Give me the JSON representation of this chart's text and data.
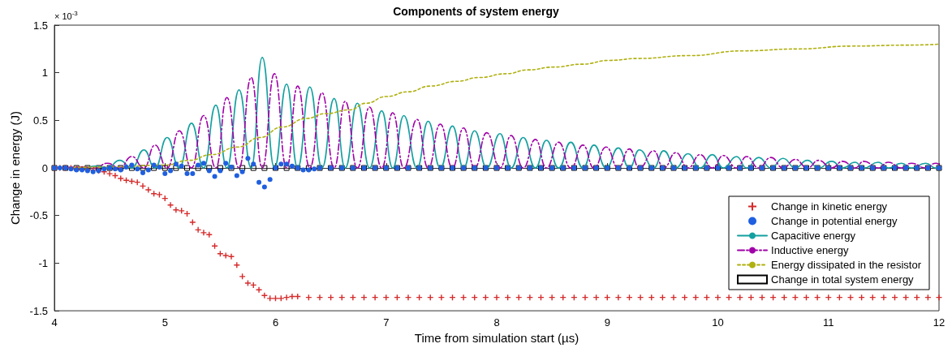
{
  "chart_data": {
    "type": "line",
    "title": "Components of system energy",
    "xlabel": "Time from simulation start (µs)",
    "ylabel": "Change in energy (J)",
    "annotations": [
      "× 10$^{-3}$"
    ],
    "xlim": [
      4,
      12
    ],
    "xticks": [
      4,
      5,
      6,
      7,
      8,
      9,
      10,
      11,
      12
    ],
    "ylim": [
      -1.5,
      1.5
    ],
    "yticks": [
      -1.5,
      -1,
      -0.5,
      0,
      0.5,
      1,
      1.5
    ],
    "legend": "bottom right",
    "series": [
      {
        "name": "Change in kinetic energy",
        "type": "scatter",
        "marker": "cross",
        "color": "#d62a2a",
        "x": [
          4,
          4.05,
          4.1,
          4.15,
          4.2,
          4.25,
          4.3,
          4.35,
          4.4,
          4.45,
          4.5,
          4.55,
          4.6,
          4.65,
          4.7,
          4.75,
          4.8,
          4.85,
          4.9,
          4.95,
          5,
          5.05,
          5.1,
          5.15,
          5.2,
          5.25,
          5.3,
          5.35,
          5.4,
          5.45,
          5.5,
          5.55,
          5.6,
          5.65,
          5.7,
          5.75,
          5.8,
          5.85,
          5.9,
          5.95,
          6,
          6.05,
          6.1,
          6.15,
          6.2,
          6.3,
          6.4,
          6.5,
          6.6,
          6.7,
          6.8,
          6.9,
          7,
          7.1,
          7.2,
          7.3,
          7.4,
          7.5,
          7.6,
          7.7,
          7.8,
          7.9,
          8,
          8.1,
          8.2,
          8.3,
          8.4,
          8.5,
          8.6,
          8.7,
          8.8,
          8.9,
          9,
          9.1,
          9.2,
          9.3,
          9.4,
          9.5,
          9.6,
          9.7,
          9.8,
          9.9,
          10,
          10.1,
          10.2,
          10.3,
          10.4,
          10.5,
          10.6,
          10.7,
          10.8,
          10.9,
          11,
          11.1,
          11.2,
          11.3,
          11.4,
          11.5,
          11.6,
          11.7,
          11.8,
          11.9,
          12
        ],
        "values": [
          0,
          0,
          0,
          0,
          -0.01,
          -0.01,
          -0.02,
          -0.02,
          -0.03,
          -0.04,
          -0.06,
          -0.08,
          -0.11,
          -0.13,
          -0.14,
          -0.15,
          -0.19,
          -0.23,
          -0.27,
          -0.28,
          -0.32,
          -0.39,
          -0.44,
          -0.45,
          -0.48,
          -0.57,
          -0.65,
          -0.68,
          -0.7,
          -0.82,
          -0.9,
          -0.92,
          -0.93,
          -1.02,
          -1.14,
          -1.21,
          -1.23,
          -1.28,
          -1.34,
          -1.37,
          -1.37,
          -1.37,
          -1.36,
          -1.35,
          -1.35,
          -1.36,
          -1.36,
          -1.36,
          -1.36,
          -1.36,
          -1.36,
          -1.36,
          -1.36,
          -1.36,
          -1.36,
          -1.36,
          -1.36,
          -1.36,
          -1.36,
          -1.36,
          -1.36,
          -1.36,
          -1.36,
          -1.36,
          -1.36,
          -1.36,
          -1.36,
          -1.36,
          -1.36,
          -1.36,
          -1.36,
          -1.36,
          -1.36,
          -1.36,
          -1.36,
          -1.36,
          -1.36,
          -1.36,
          -1.36,
          -1.36,
          -1.36,
          -1.36,
          -1.36,
          -1.36,
          -1.36,
          -1.36,
          -1.36,
          -1.36,
          -1.36,
          -1.36,
          -1.36,
          -1.36,
          -1.36,
          -1.36,
          -1.36,
          -1.36,
          -1.36,
          -1.36,
          -1.36,
          -1.36,
          -1.36,
          -1.36,
          -1.36
        ]
      },
      {
        "name": "Change in potential energy",
        "type": "scatter",
        "marker": "circle",
        "color": "#1f5fe0",
        "x": [
          4,
          4.05,
          4.1,
          4.15,
          4.2,
          4.25,
          4.3,
          4.35,
          4.4,
          4.45,
          4.5,
          4.55,
          4.6,
          4.65,
          4.7,
          4.75,
          4.8,
          4.85,
          4.9,
          4.95,
          5,
          5.05,
          5.1,
          5.15,
          5.2,
          5.25,
          5.3,
          5.35,
          5.4,
          5.45,
          5.5,
          5.55,
          5.6,
          5.65,
          5.7,
          5.75,
          5.8,
          5.85,
          5.9,
          5.95,
          6,
          6.05,
          6.1,
          6.15,
          6.2,
          6.25,
          6.3,
          6.35,
          6.4,
          6.5,
          6.6,
          6.7,
          6.8,
          6.9,
          7,
          7.1,
          7.2,
          7.3,
          7.4,
          7.5,
          7.6,
          7.7,
          7.8,
          7.9,
          8,
          8.1,
          8.2,
          8.3,
          8.4,
          8.5,
          8.6,
          8.7,
          8.8,
          8.9,
          9,
          9.1,
          9.2,
          9.3,
          9.4,
          9.5,
          9.6,
          9.7,
          9.8,
          9.9,
          10,
          10.1,
          10.2,
          10.3,
          10.4,
          10.5,
          10.6,
          10.7,
          10.8,
          10.9,
          11,
          11.1,
          11.2,
          11.3,
          11.4,
          11.5,
          11.6,
          11.7,
          11.8,
          11.9,
          12
        ],
        "values": [
          0,
          0,
          0,
          -0.01,
          -0.02,
          -0.02,
          -0.03,
          -0.04,
          -0.03,
          -0.01,
          0,
          -0.01,
          -0.02,
          0.01,
          0.03,
          -0.01,
          -0.05,
          -0.02,
          0.03,
          0.01,
          -0.06,
          -0.03,
          0.04,
          0.02,
          -0.06,
          -0.06,
          0.03,
          0.05,
          -0.03,
          -0.09,
          -0.03,
          0.05,
          0.01,
          -0.08,
          -0.04,
          0.1,
          0.04,
          -0.15,
          -0.2,
          -0.12,
          0,
          0.04,
          0.04,
          0.02,
          0,
          -0.02,
          -0.02,
          -0.01,
          0,
          0,
          0,
          0,
          0,
          0,
          0,
          0,
          0,
          0,
          0,
          0,
          0,
          0,
          0,
          0,
          0,
          0,
          0,
          0,
          0,
          0,
          0,
          0,
          0,
          0,
          0,
          0,
          0,
          0,
          0,
          0,
          0,
          0,
          0,
          0,
          0,
          0,
          0,
          0,
          0,
          0,
          0,
          0,
          0,
          0,
          0,
          0,
          0,
          0,
          0,
          0,
          0,
          0,
          0,
          0,
          0
        ]
      },
      {
        "name": "Capacitive energy",
        "marker": "none",
        "line_style": "solid",
        "color": "#14a0a0",
        "x": [
          4,
          4.27,
          4.37,
          4.48,
          4.59,
          4.7,
          4.81,
          4.91,
          5.02,
          5.13,
          5.24,
          5.35,
          5.46,
          5.56,
          5.67,
          5.78,
          5.88,
          5.99,
          6.1,
          6.2,
          6.31,
          6.42,
          6.53,
          6.63,
          6.74,
          6.85,
          6.96,
          7.06,
          7.16,
          7.28,
          7.38,
          7.49,
          7.6,
          7.7,
          7.8,
          7.91,
          8.03,
          8.13,
          8.24,
          8.35,
          8.45,
          8.56,
          8.67,
          8.78,
          8.88,
          8.99,
          9.1,
          9.2,
          9.29,
          9.42,
          9.51,
          9.62,
          9.73,
          9.84,
          9.95,
          10.05,
          10.17,
          10.26,
          10.37,
          10.48,
          10.59,
          10.7,
          10.81,
          10.91,
          11.03,
          11.13,
          11.24,
          11.32,
          11.45,
          11.54,
          11.66,
          11.75,
          11.88,
          11.97,
          12
        ],
        "values": [
          0,
          0,
          0.02,
          0,
          0.08,
          0,
          0.19,
          0,
          0.32,
          0,
          0.47,
          0,
          0.66,
          0,
          0.82,
          0,
          1.16,
          0,
          0.88,
          0,
          0.85,
          0,
          0.73,
          0,
          0.68,
          0,
          0.6,
          0,
          0.55,
          0,
          0.49,
          0,
          0.44,
          0,
          0.39,
          0,
          0.36,
          0,
          0.32,
          0,
          0.29,
          0,
          0.27,
          0,
          0.24,
          0,
          0.21,
          0,
          0.19,
          0,
          0.18,
          0,
          0.15,
          0,
          0.14,
          0,
          0.12,
          0,
          0.11,
          0,
          0.1,
          0,
          0.08,
          0,
          0.07,
          0,
          0.06,
          0,
          0.06,
          0,
          0.05,
          0,
          0.05,
          0,
          0
        ]
      },
      {
        "name": "Inductive energy",
        "marker": "none",
        "line_style": "dashdot",
        "color": "#a000a8",
        "x": [
          4,
          4.27,
          4.37,
          4.48,
          4.59,
          4.7,
          4.81,
          4.91,
          5.02,
          5.13,
          5.24,
          5.35,
          5.46,
          5.56,
          5.67,
          5.78,
          5.88,
          5.99,
          6.1,
          6.2,
          6.31,
          6.42,
          6.53,
          6.63,
          6.74,
          6.85,
          6.96,
          7.06,
          7.16,
          7.28,
          7.38,
          7.49,
          7.6,
          7.7,
          7.8,
          7.91,
          8.03,
          8.13,
          8.24,
          8.35,
          8.45,
          8.56,
          8.67,
          8.78,
          8.88,
          8.99,
          9.1,
          9.2,
          9.29,
          9.42,
          9.51,
          9.62,
          9.73,
          9.84,
          9.95,
          10.05,
          10.17,
          10.26,
          10.37,
          10.48,
          10.59,
          10.7,
          10.81,
          10.91,
          11.03,
          11.13,
          11.24,
          11.32,
          11.45,
          11.54,
          11.66,
          11.75,
          11.88,
          11.97,
          12
        ],
        "values": [
          0,
          0.01,
          0,
          0.05,
          0,
          0.12,
          0,
          0.24,
          0,
          0.39,
          0,
          0.55,
          0,
          0.74,
          0,
          0.95,
          0,
          0.99,
          0,
          0.86,
          0,
          0.79,
          0,
          0.7,
          0,
          0.64,
          0,
          0.58,
          0,
          0.51,
          0,
          0.46,
          0,
          0.42,
          0,
          0.37,
          0,
          0.34,
          0,
          0.3,
          0,
          0.27,
          0,
          0.24,
          0,
          0.22,
          0,
          0.2,
          0,
          0.18,
          0,
          0.16,
          0,
          0.14,
          0,
          0.13,
          0,
          0.12,
          0,
          0.11,
          0,
          0.09,
          0,
          0.08,
          0,
          0.07,
          0,
          0.07,
          0,
          0.06,
          0,
          0.05,
          0,
          0.05,
          0.04
        ]
      },
      {
        "name": "Energy dissipated in the resistor",
        "marker": "none",
        "line_style": "dotted",
        "color": "#b0b010",
        "x": [
          4,
          4.5,
          5,
          5.22,
          5.42,
          5.66,
          5.86,
          6.06,
          6.28,
          6.45,
          6.67,
          6.82,
          7,
          7.2,
          7.4,
          7.64,
          7.84,
          8.09,
          8.28,
          8.52,
          8.77,
          9.02,
          9.28,
          9.74,
          10.23,
          10.72,
          11.21,
          11.7,
          12
        ],
        "values": [
          0,
          0.01,
          0.03,
          0.08,
          0.14,
          0.22,
          0.32,
          0.43,
          0.52,
          0.57,
          0.61,
          0.68,
          0.75,
          0.8,
          0.86,
          0.91,
          0.95,
          0.99,
          1.03,
          1.06,
          1.09,
          1.13,
          1.15,
          1.18,
          1.23,
          1.25,
          1.28,
          1.29,
          1.3
        ]
      },
      {
        "name": "Change in total system energy",
        "type": "scatter",
        "marker": "square",
        "color": "#000000",
        "x": [
          4,
          4.1,
          4.2,
          4.3,
          4.4,
          4.5,
          4.6,
          4.7,
          4.8,
          4.9,
          5,
          5.1,
          5.2,
          5.3,
          5.4,
          5.5,
          5.6,
          5.7,
          5.8,
          5.9,
          6,
          6.1,
          6.2,
          6.3,
          6.4,
          6.5,
          6.6,
          6.7,
          6.8,
          6.9,
          7,
          7.1,
          7.2,
          7.3,
          7.4,
          7.5,
          7.6,
          7.7,
          7.8,
          7.9,
          8,
          8.1,
          8.2,
          8.3,
          8.4,
          8.5,
          8.6,
          8.7,
          8.8,
          8.9,
          9,
          9.1,
          9.2,
          9.3,
          9.4,
          9.5,
          9.6,
          9.7,
          9.8,
          9.9,
          10,
          10.1,
          10.2,
          10.3,
          10.4,
          10.5,
          10.6,
          10.7,
          10.8,
          10.9,
          11,
          11.1,
          11.2,
          11.3,
          11.4,
          11.5,
          11.6,
          11.7,
          11.8,
          11.9,
          12
        ],
        "values": [
          0,
          0,
          0,
          0,
          0,
          0,
          0,
          0,
          0,
          0,
          0,
          0,
          0,
          0,
          0,
          0,
          0,
          0,
          0,
          0,
          0,
          0,
          0,
          0,
          0,
          0,
          0,
          0,
          0,
          0,
          0,
          0,
          0,
          0,
          0,
          0,
          0,
          0,
          0,
          0,
          0,
          0,
          0,
          0,
          0,
          0,
          0,
          0,
          0,
          0,
          0,
          0,
          0,
          0,
          0,
          0,
          0,
          0,
          0,
          0,
          0,
          0,
          0,
          0,
          0,
          0,
          0,
          0,
          0,
          0,
          0,
          0,
          0,
          0,
          0,
          0,
          0,
          0,
          0,
          0,
          0
        ]
      }
    ]
  }
}
